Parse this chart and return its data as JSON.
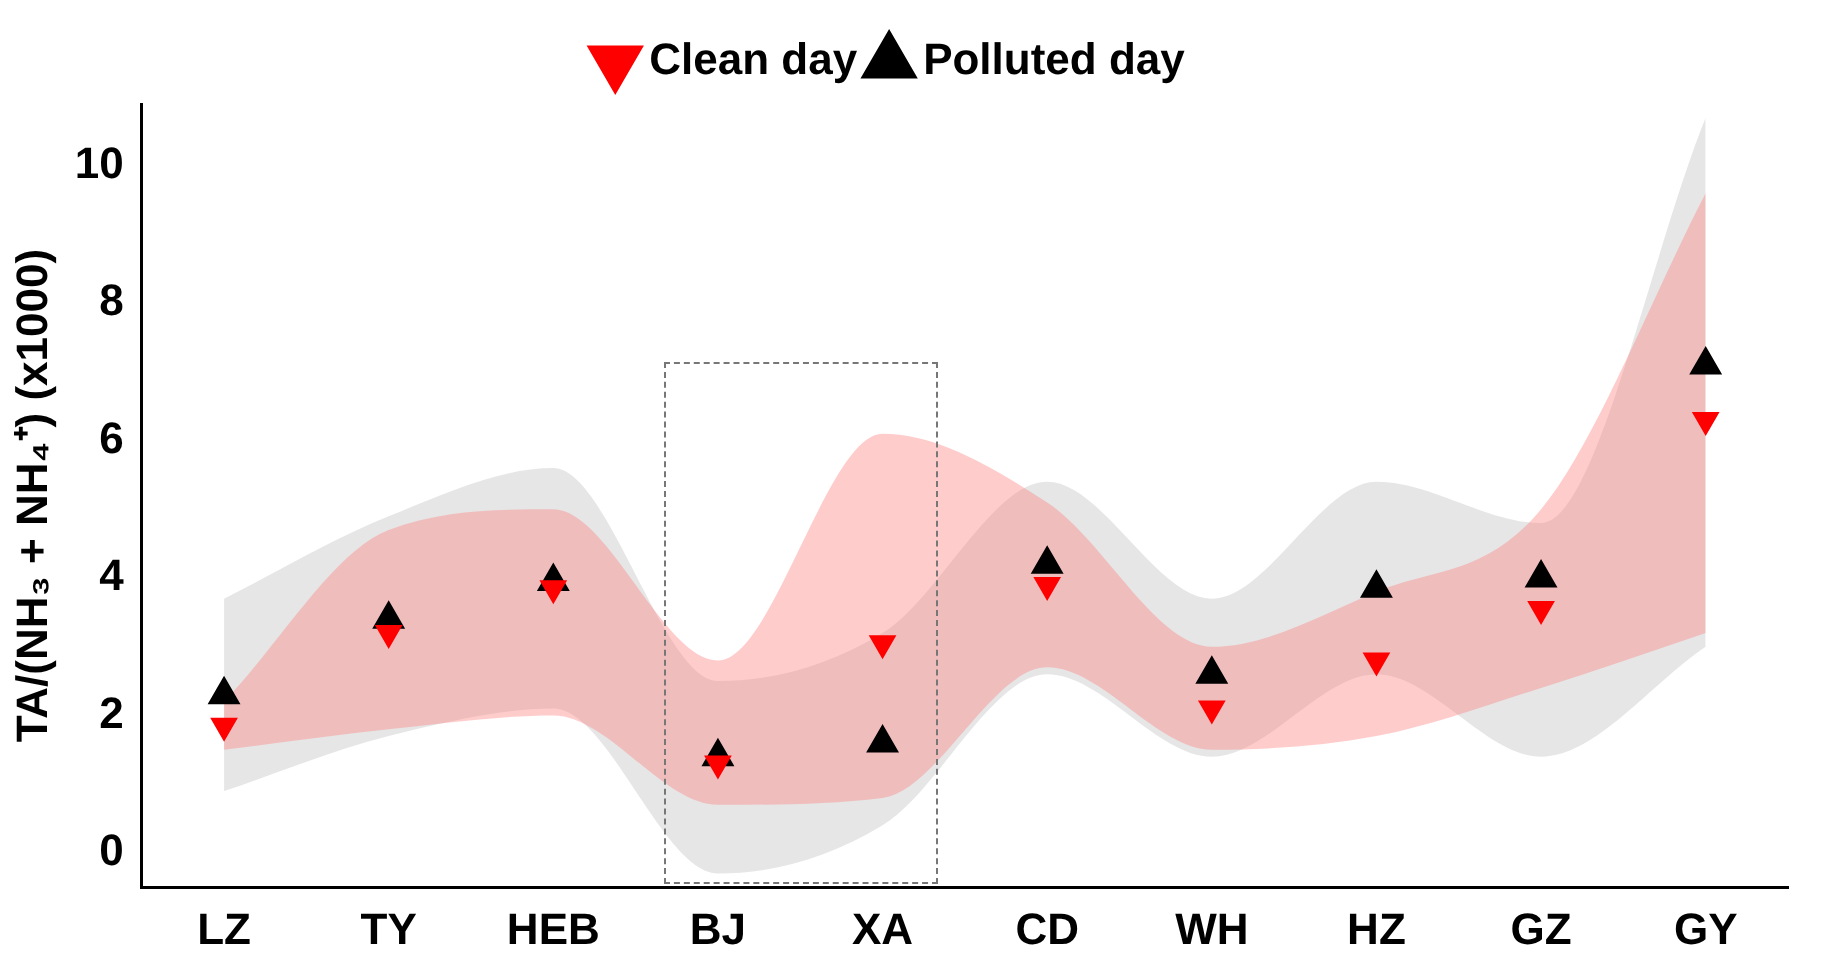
{
  "chart_data": {
    "type": "scatter",
    "ylabel": "TA/(NH₃ + NH₄⁺) (x1000)",
    "categories": [
      "LZ",
      "TY",
      "HEB",
      "BJ",
      "XA",
      "CD",
      "WH",
      "HZ",
      "GZ",
      "GY"
    ],
    "series": [
      {
        "name": "Clean day",
        "color": "#ff0000",
        "marker": "triangle",
        "values": [
          1.85,
          3.2,
          3.85,
          1.3,
          3.05,
          3.9,
          2.1,
          2.8,
          3.55,
          6.3
        ],
        "lower": [
          1.5,
          1.8,
          2.0,
          0.7,
          0.8,
          2.7,
          1.5,
          1.7,
          2.4,
          3.2
        ],
        "upper": [
          2.2,
          4.7,
          5.0,
          2.8,
          6.1,
          5.1,
          3.0,
          3.8,
          5.0,
          9.6
        ]
      },
      {
        "name": "Polluted day",
        "color": "#000000",
        "marker": "triangle",
        "values": [
          2.3,
          3.4,
          3.95,
          1.4,
          1.6,
          4.2,
          2.6,
          3.85,
          4.0,
          7.1
        ],
        "lower": [
          0.9,
          1.7,
          2.1,
          -0.3,
          0.4,
          2.6,
          1.4,
          2.6,
          1.4,
          3.0
        ],
        "upper": [
          3.7,
          4.9,
          5.6,
          2.5,
          3.2,
          5.4,
          3.7,
          5.4,
          4.8,
          10.7
        ]
      }
    ],
    "ylim": [
      -0.5,
      10.9
    ],
    "yticks": [
      0,
      2,
      4,
      6,
      8,
      10
    ],
    "grid": false,
    "legend": "top"
  }
}
